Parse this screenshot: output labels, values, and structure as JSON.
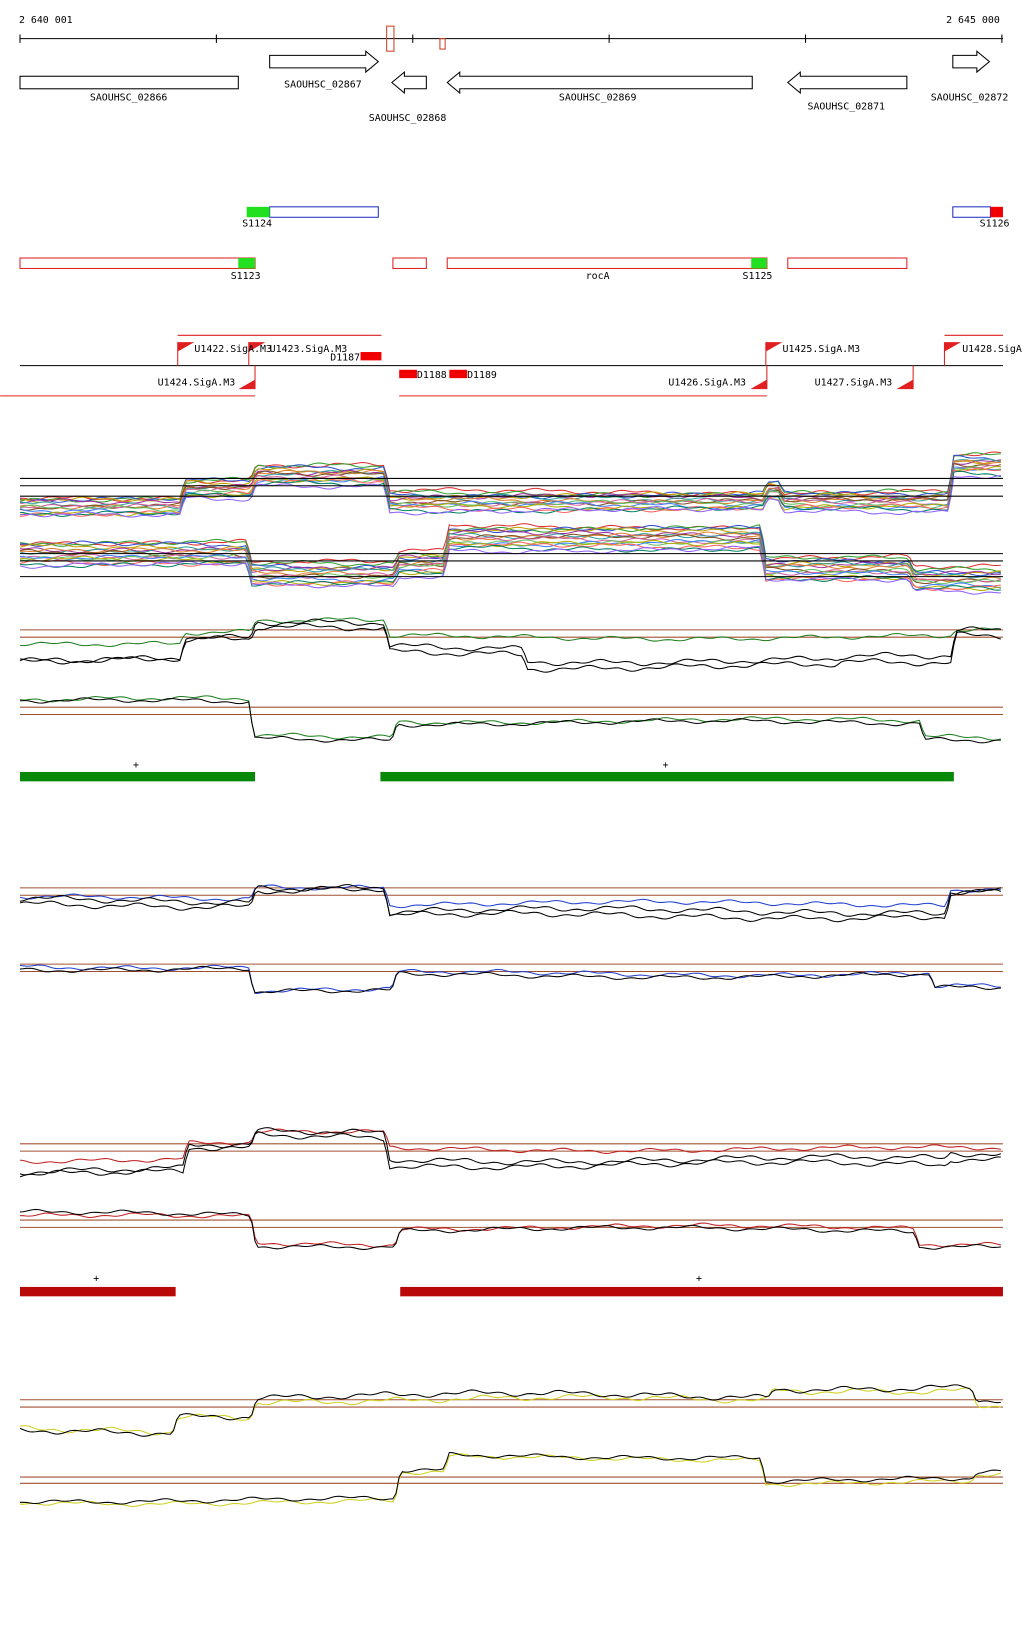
{
  "ruler": {
    "start": "2 640 001",
    "end": "2 645 000"
  },
  "genes": [
    "SAOUHSC_02866",
    "SAOUHSC_02867",
    "SAOUHSC_02868",
    "SAOUHSC_02869",
    "SAOUHSC_02871",
    "SAOUHSC_02872"
  ],
  "features": [
    "S1124",
    "S1126",
    "S1123",
    "rocA",
    "S1125"
  ],
  "promoters": [
    "U1422.SigA.M3",
    "U1423.SigA.M3",
    "D1187",
    "U1425.SigA.M3",
    "U1428.SigA",
    "D1188",
    "D1189",
    "U1424.SigA.M3",
    "U1426.SigA.M3",
    "U1427.SigA.M3"
  ],
  "strand_labels": [
    "+",
    "+",
    "+",
    "+"
  ]
}
